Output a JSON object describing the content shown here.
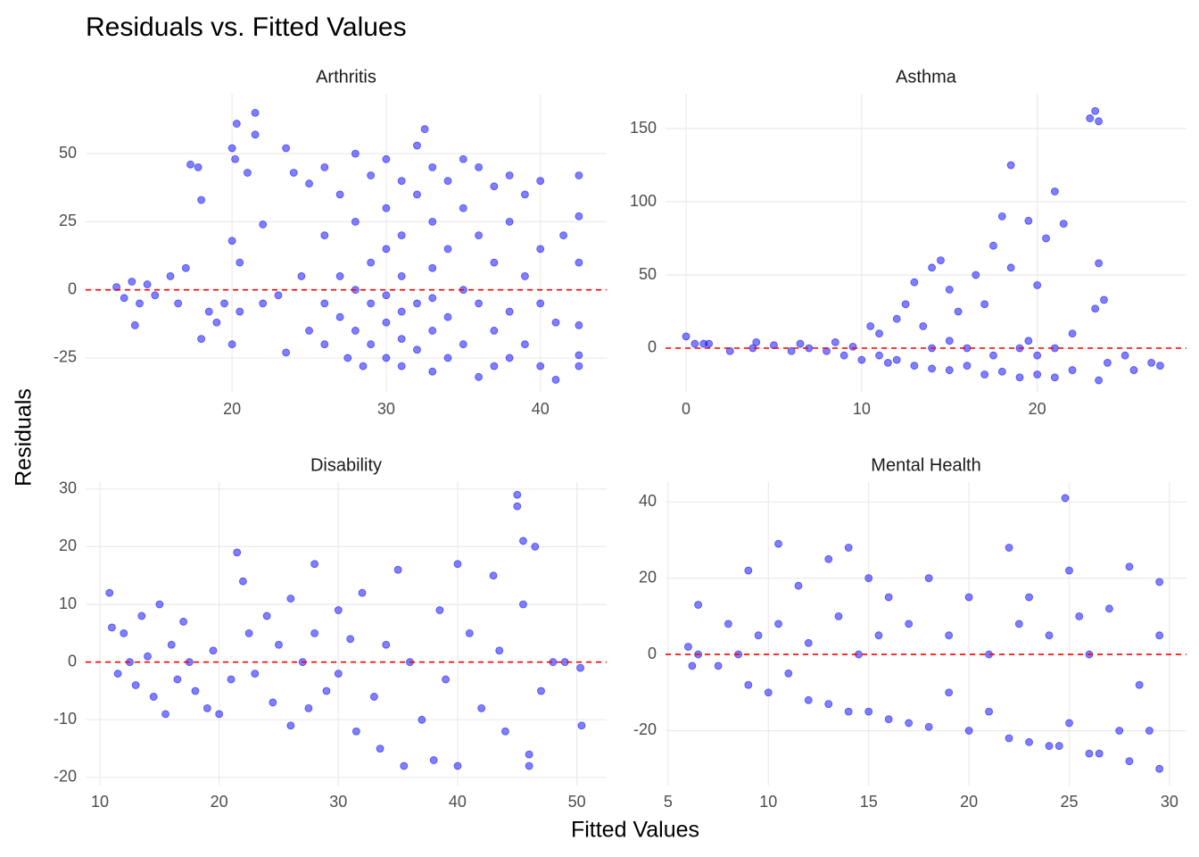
{
  "title": "Residuals vs. Fitted Values",
  "x_label": "Fitted Values",
  "y_label": "Residuals",
  "chart_data": [
    {
      "type": "scatter",
      "title": "Arthritis",
      "color": "#0000ff",
      "hline": 0,
      "hline_color": "#ff0000",
      "xlim": [
        10.5,
        44.3
      ],
      "ylim": [
        -37.8,
        72
      ],
      "xticks": [
        20,
        30,
        40
      ],
      "yticks": [
        -25,
        0,
        25,
        50
      ],
      "x": [
        12.5,
        13,
        13.5,
        13.7,
        14,
        14.5,
        15,
        16,
        16.5,
        17,
        17.3,
        17.8,
        18,
        18,
        18.5,
        19,
        19.5,
        20,
        20,
        20,
        20.2,
        20.3,
        20.5,
        20.5,
        21,
        21.5,
        21.5,
        22,
        22,
        23,
        23.5,
        23.5,
        24,
        24.5,
        25,
        25,
        26,
        26,
        26,
        26,
        27,
        27,
        27,
        27.5,
        28,
        28,
        28,
        28,
        28.5,
        29,
        29,
        29,
        29,
        30,
        30,
        30,
        30,
        30,
        30,
        31,
        31,
        31,
        31,
        31,
        31,
        32,
        32,
        32,
        32,
        32.5,
        33,
        33,
        33,
        33,
        33,
        33,
        34,
        34,
        34,
        34,
        35,
        35,
        35,
        35,
        36,
        36,
        36,
        36,
        37,
        37,
        37,
        37,
        38,
        38,
        38,
        38,
        39,
        39,
        39,
        40,
        40,
        40,
        40,
        41,
        41,
        41.5,
        42.5,
        42.5,
        42.5,
        42.5,
        42.5,
        42.5
      ],
      "y": [
        1,
        -3,
        3,
        -13,
        -5,
        2,
        -2,
        5,
        -5,
        8,
        46,
        45,
        33,
        -18,
        -8,
        -12,
        -5,
        52,
        18,
        -20,
        48,
        61,
        -8,
        10,
        43,
        65,
        57,
        -5,
        24,
        -2,
        52,
        -23,
        43,
        5,
        -15,
        39,
        45,
        20,
        -5,
        -20,
        35,
        5,
        -10,
        -25,
        50,
        25,
        0,
        -15,
        -28,
        42,
        10,
        -5,
        -20,
        48,
        30,
        15,
        -2,
        -12,
        -25,
        40,
        20,
        5,
        -8,
        -18,
        -28,
        53,
        35,
        -5,
        -22,
        59,
        45,
        25,
        8,
        -3,
        -15,
        -30,
        40,
        15,
        -10,
        -25,
        48,
        30,
        0,
        -20,
        45,
        20,
        -5,
        -32,
        38,
        10,
        -15,
        -28,
        42,
        25,
        -8,
        -25,
        35,
        5,
        -20,
        40,
        15,
        -5,
        -28,
        -12,
        -33,
        20,
        42,
        27,
        10,
        -13,
        -28,
        -24
      ]
    },
    {
      "type": "scatter",
      "title": "Asthma",
      "color": "#0000ff",
      "hline": 0,
      "hline_color": "#ff0000",
      "xlim": [
        -1.17,
        28.5
      ],
      "ylim": [
        -30.5,
        173.8
      ],
      "xticks": [
        0,
        10,
        20
      ],
      "yticks": [
        0,
        50,
        100,
        150
      ],
      "x": [
        0,
        0.5,
        1,
        1.3,
        2.5,
        3.8,
        4,
        5,
        6,
        6.5,
        7,
        8,
        8.5,
        9,
        9.5,
        10,
        10.5,
        11,
        11,
        11.5,
        12,
        12,
        12.5,
        13,
        13,
        13.5,
        14,
        14,
        14,
        14.5,
        15,
        15,
        15,
        15.5,
        16,
        16,
        16.5,
        17,
        17,
        17.5,
        17.5,
        18,
        18,
        18.5,
        18.5,
        19,
        19,
        19.5,
        19.5,
        20,
        20,
        20,
        20.5,
        21,
        21,
        21,
        21.5,
        22,
        22,
        23,
        23.3,
        23.5,
        23.3,
        23.5,
        23.5,
        23.8,
        24,
        25,
        25.5,
        26.5,
        27
      ],
      "y": [
        8,
        3,
        3,
        3,
        -2,
        0,
        4,
        2,
        -2,
        3,
        0,
        -2,
        4,
        -5,
        1,
        -8,
        15,
        -5,
        10,
        -10,
        20,
        -8,
        30,
        -12,
        45,
        15,
        55,
        -14,
        0,
        60,
        -15,
        40,
        5,
        25,
        -12,
        0,
        50,
        -18,
        30,
        -5,
        70,
        -16,
        90,
        125,
        55,
        -20,
        0,
        87,
        5,
        -18,
        43,
        -5,
        75,
        -20,
        107,
        0,
        85,
        -15,
        10,
        157,
        162,
        155,
        27,
        58,
        -22,
        33,
        -10,
        -5,
        -15,
        -10,
        -12
      ]
    },
    {
      "type": "scatter",
      "title": "Disability",
      "color": "#0000ff",
      "hline": 0,
      "hline_color": "#ff0000",
      "xlim": [
        8.8,
        52.5
      ],
      "ylim": [
        -21.4,
        31.2
      ],
      "xticks": [
        10,
        20,
        30,
        40,
        50
      ],
      "yticks": [
        -20,
        -10,
        0,
        10,
        20,
        30
      ],
      "x": [
        10.8,
        11,
        11.5,
        12,
        12.5,
        13,
        13.5,
        14,
        14.5,
        15,
        15.5,
        16,
        16.5,
        17,
        17.5,
        18,
        19,
        19.5,
        20,
        21,
        21.5,
        22,
        22.5,
        23,
        24,
        24.5,
        25,
        26,
        26,
        27,
        27.5,
        28,
        28,
        29,
        30,
        30,
        31,
        31.5,
        32,
        33,
        33.5,
        34,
        35,
        35.5,
        36,
        37,
        38,
        38.5,
        39,
        40,
        40,
        41,
        42,
        43,
        43.5,
        44,
        45,
        45,
        45.5,
        45.5,
        46,
        46,
        46.5,
        47,
        48,
        49,
        50.3,
        50.4
      ],
      "y": [
        12,
        6,
        -2,
        5,
        0,
        -4,
        8,
        1,
        -6,
        10,
        -9,
        3,
        -3,
        7,
        0,
        -5,
        -8,
        2,
        -9,
        -3,
        19,
        14,
        5,
        -2,
        8,
        -7,
        3,
        -11,
        11,
        0,
        -8,
        17,
        5,
        -5,
        9,
        -2,
        4,
        -12,
        12,
        -6,
        -15,
        3,
        16,
        -18,
        0,
        -10,
        -17,
        9,
        -3,
        17,
        -18,
        5,
        -8,
        15,
        2,
        -12,
        29,
        27,
        21,
        10,
        -16,
        -18,
        20,
        -5,
        0,
        0,
        -1,
        -11
      ]
    },
    {
      "type": "scatter",
      "title": "Mental Health",
      "color": "#0000ff",
      "hline": 0,
      "hline_color": "#ff0000",
      "xlim": [
        4.87,
        30.85
      ],
      "ylim": [
        -34.4,
        45.2
      ],
      "xticks": [
        5,
        10,
        15,
        20,
        25,
        30
      ],
      "yticks": [
        -20,
        0,
        20,
        40
      ],
      "x": [
        6,
        6.2,
        6.5,
        6.5,
        7.5,
        8,
        8.5,
        9,
        9,
        9.5,
        10,
        10.5,
        10.5,
        11,
        11.5,
        12,
        12,
        13,
        13,
        13.5,
        14,
        14,
        14.5,
        15,
        15,
        15.5,
        16,
        16,
        17,
        17,
        18,
        18,
        19,
        19,
        20,
        20,
        21,
        21,
        22,
        22,
        22.5,
        23,
        23,
        24,
        24,
        24.5,
        24.8,
        25,
        25,
        25.5,
        26,
        26,
        26.5,
        27,
        27.5,
        28,
        28,
        28.5,
        29,
        29.5,
        29.5,
        29.5
      ],
      "y": [
        2,
        -3,
        13,
        0,
        -3,
        8,
        0,
        -8,
        22,
        5,
        -10,
        29,
        8,
        -5,
        18,
        -12,
        3,
        25,
        -13,
        10,
        28,
        -15,
        0,
        20,
        -15,
        5,
        -17,
        15,
        -18,
        8,
        -19,
        20,
        -10,
        5,
        -20,
        15,
        0,
        -15,
        -22,
        28,
        8,
        -23,
        15,
        -24,
        5,
        -24,
        41,
        -18,
        22,
        10,
        -26,
        0,
        -26,
        12,
        -20,
        -28,
        23,
        -8,
        -20,
        -30,
        19,
        5
      ]
    }
  ]
}
